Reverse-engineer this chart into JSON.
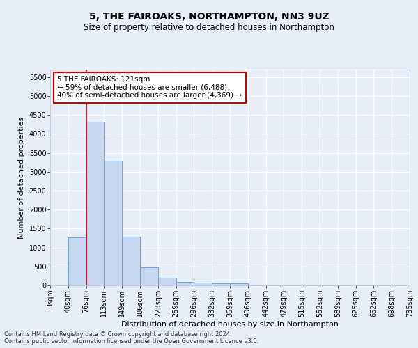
{
  "title": "5, THE FAIROAKS, NORTHAMPTON, NN3 9UZ",
  "subtitle": "Size of property relative to detached houses in Northampton",
  "xlabel": "Distribution of detached houses by size in Northampton",
  "ylabel": "Number of detached properties",
  "footer_line1": "Contains HM Land Registry data © Crown copyright and database right 2024.",
  "footer_line2": "Contains public sector information licensed under the Open Government Licence v3.0.",
  "bar_values": [
    0,
    1270,
    4330,
    3300,
    1280,
    480,
    210,
    90,
    70,
    55,
    50,
    0,
    0,
    0,
    0,
    0,
    0,
    0,
    0,
    0
  ],
  "bar_labels": [
    "3sqm",
    "40sqm",
    "76sqm",
    "113sqm",
    "149sqm",
    "186sqm",
    "223sqm",
    "259sqm",
    "296sqm",
    "332sqm",
    "369sqm",
    "406sqm",
    "442sqm",
    "479sqm",
    "515sqm",
    "552sqm",
    "589sqm",
    "625sqm",
    "662sqm",
    "698sqm",
    "735sqm"
  ],
  "bar_color": "#c5d8f0",
  "bar_edgecolor": "#5b9bd5",
  "vline_x": 2.0,
  "vline_color": "#cc0000",
  "ylim": [
    0,
    5700
  ],
  "yticks": [
    0,
    500,
    1000,
    1500,
    2000,
    2500,
    3000,
    3500,
    4000,
    4500,
    5000,
    5500
  ],
  "annotation_text_line1": "5 THE FAIROAKS: 121sqm",
  "annotation_text_line2": "← 59% of detached houses are smaller (6,488)",
  "annotation_text_line3": "40% of semi-detached houses are larger (4,369) →",
  "annotation_box_color": "#ffffff",
  "annotation_border_color": "#cc0000",
  "bg_color": "#e8eef8",
  "plot_bg_color": "#e8eef8",
  "title_fontsize": 10,
  "subtitle_fontsize": 8.5,
  "axis_label_fontsize": 8,
  "tick_fontsize": 7,
  "annotation_fontsize": 7.5,
  "footer_fontsize": 6
}
